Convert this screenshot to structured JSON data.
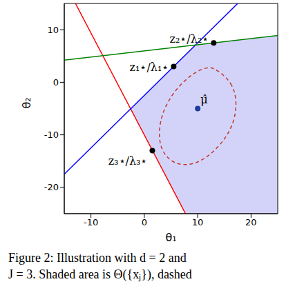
{
  "chart_data": {
    "type": "line",
    "x_label": "θ₁",
    "y_label": "θ₂",
    "xlim": [
      -15,
      25
    ],
    "ylim": [
      -25,
      15
    ],
    "xticks": [
      -10,
      0,
      10,
      20
    ],
    "yticks": [
      -20,
      -10,
      0,
      10
    ],
    "series": [
      {
        "color": "#ff0000",
        "x": [
          -12.9,
          7.72
        ],
        "values": [
          15,
          -25
        ]
      },
      {
        "color": "#0000ff",
        "x": [
          -15,
          17.5
        ],
        "values": [
          -17.5,
          15
        ]
      },
      {
        "color": "#008000",
        "x": [
          -15,
          25
        ],
        "values": [
          4.2,
          8.9
        ]
      }
    ],
    "region": {
      "color": "#c8c8f8",
      "x": [
        -2.56,
        7.72,
        9.59,
        25
      ],
      "lower": [
        -5.06,
        -25,
        -25,
        -25
      ],
      "upper": [
        -5.06,
        5.22,
        7.09,
        8.9
      ]
    },
    "ellipse": {
      "color": "#c0392b",
      "line_style": "dashed",
      "x": [
        13.5,
        16.5,
        17.5,
        16.5,
        13,
        9,
        5,
        2.5,
        3,
        6,
        9.5,
        12
      ],
      "y": [
        2.5,
        0,
        -4,
        -9,
        -13.5,
        -16,
        -15.5,
        -12,
        -6,
        -1,
        2,
        3
      ]
    },
    "points": [
      {
        "label": "z₁⋆/λ₁⋆",
        "x": 5.5,
        "y": 3,
        "color": "#000000"
      },
      {
        "label": "z₂⋆/λ₂⋆",
        "x": 13,
        "y": 7.5,
        "color": "#000000"
      },
      {
        "label": "z₃⋆/λ₃⋆",
        "x": 1.5,
        "y": -13,
        "color": "#000000"
      },
      {
        "label": "μ̂",
        "x": 10,
        "y": -5,
        "color": "#1f3c99"
      }
    ],
    "caption": [
      "Figure 2: Illustration with d = 2 and",
      "J = 3. Shaded area is Θ({xⱼ}), dashed"
    ]
  }
}
